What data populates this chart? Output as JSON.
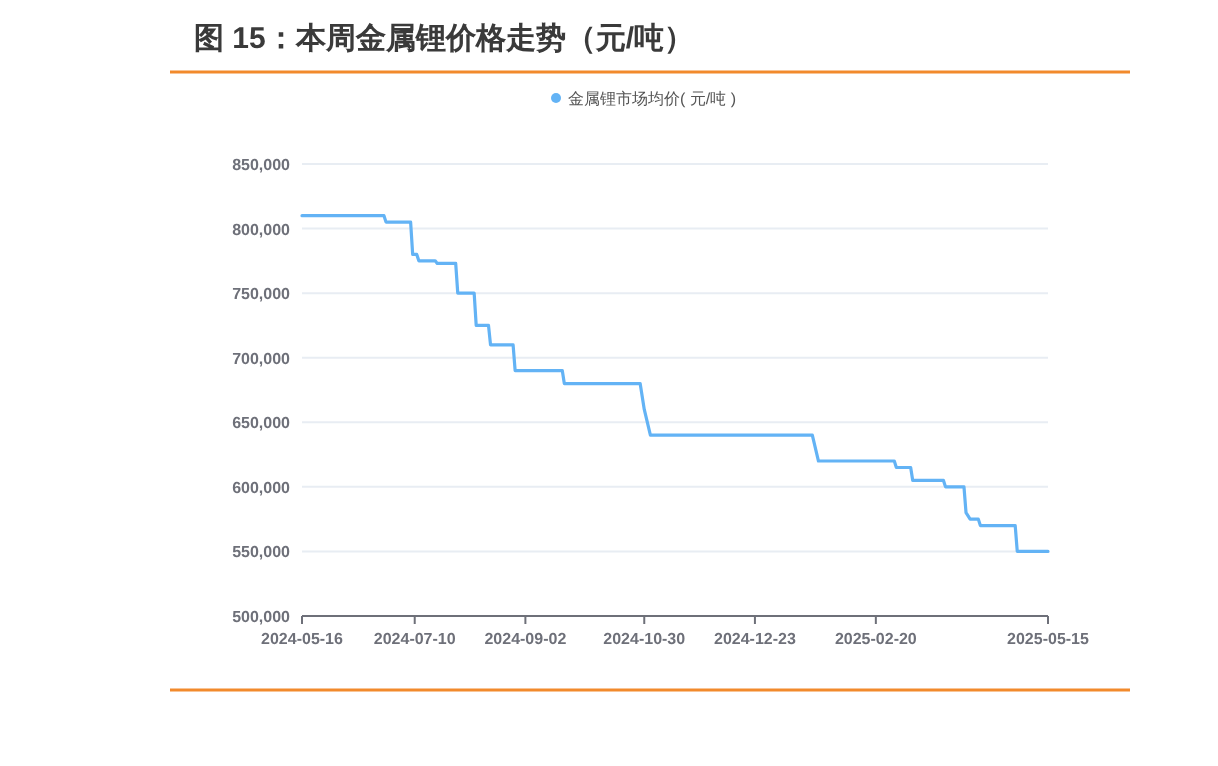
{
  "chart_data": {
    "type": "line",
    "title": "图 15：本周金属锂价格走势（元/吨）",
    "x": [
      "2024-05-16",
      "2024-06-25",
      "2024-06-26",
      "2024-07-08",
      "2024-07-09",
      "2024-07-11",
      "2024-07-12",
      "2024-07-20",
      "2024-07-21",
      "2024-07-30",
      "2024-07-31",
      "2024-08-08",
      "2024-08-09",
      "2024-08-15",
      "2024-08-16",
      "2024-08-27",
      "2024-08-28",
      "2024-09-20",
      "2024-09-21",
      "2024-10-28",
      "2024-10-30",
      "2024-11-02",
      "2025-01-20",
      "2025-01-23",
      "2025-03-01",
      "2025-03-02",
      "2025-03-09",
      "2025-03-10",
      "2025-03-25",
      "2025-03-26",
      "2025-04-04",
      "2025-04-05",
      "2025-04-07",
      "2025-04-11",
      "2025-04-12",
      "2025-04-29",
      "2025-04-30",
      "2025-05-15"
    ],
    "series": [
      {
        "name": "金属锂市场均价( 元/吨 )",
        "color": "#63b3f5",
        "values": [
          810000,
          810000,
          805000,
          805000,
          780000,
          780000,
          775000,
          775000,
          773000,
          773000,
          750000,
          750000,
          725000,
          725000,
          710000,
          710000,
          690000,
          690000,
          680000,
          680000,
          660000,
          640000,
          640000,
          620000,
          620000,
          615000,
          615000,
          605000,
          605000,
          600000,
          600000,
          580000,
          575000,
          575000,
          570000,
          570000,
          550000,
          550000
        ]
      }
    ],
    "xlim": [
      "2024-05-16",
      "2025-05-15"
    ],
    "xticks": [
      "2024-05-16",
      "2024-07-10",
      "2024-09-02",
      "2024-10-30",
      "2024-12-23",
      "2025-02-20",
      "2025-05-15"
    ],
    "ylim": [
      500000,
      850000
    ],
    "yticks": [
      {
        "value": 500000,
        "label": "500,000"
      },
      {
        "value": 550000,
        "label": "550,000"
      },
      {
        "value": 600000,
        "label": "600,000"
      },
      {
        "value": 650000,
        "label": "650,000"
      },
      {
        "value": 700000,
        "label": "700,000"
      },
      {
        "value": 750000,
        "label": "750,000"
      },
      {
        "value": 800000,
        "label": "800,000"
      },
      {
        "value": 850000,
        "label": "850,000"
      }
    ],
    "grid": "y",
    "legend": "top"
  }
}
